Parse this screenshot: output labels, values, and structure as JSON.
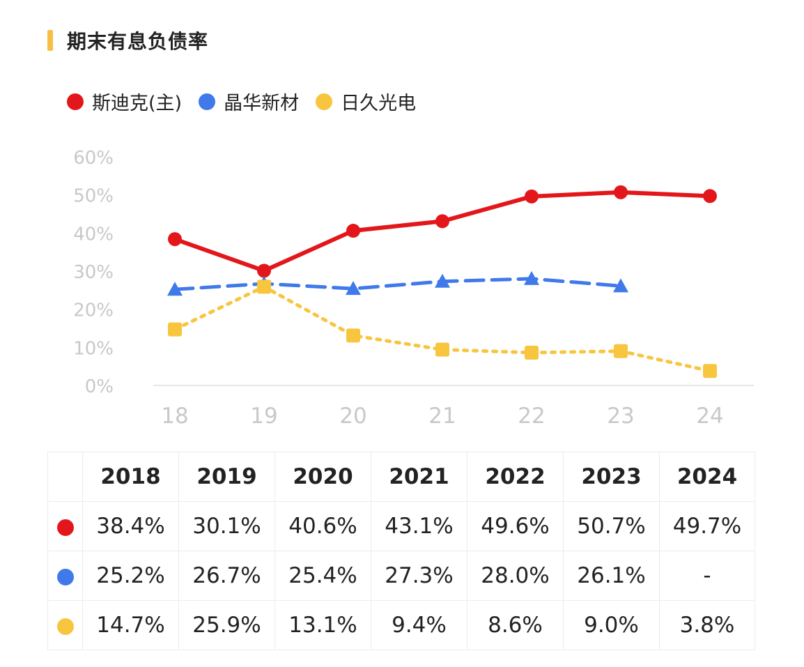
{
  "title": "期末有息负债率",
  "colors": {
    "accent": "#f7c043",
    "grid": "#e6e6e6",
    "axis_text": "#c8c8c8"
  },
  "chart_data": {
    "type": "line",
    "title": "期末有息负债率",
    "x": [
      "18",
      "19",
      "20",
      "21",
      "22",
      "23",
      "24"
    ],
    "ylim": [
      0,
      60
    ],
    "yticks": [
      "60%",
      "50%",
      "40%",
      "30%",
      "20%",
      "10%",
      "0%"
    ],
    "ytick_values": [
      60,
      50,
      40,
      30,
      20,
      10,
      0
    ],
    "legend_position": "top-left",
    "grid": false,
    "series": [
      {
        "name": "斯迪克(主)",
        "color": "#e3171b",
        "style": "solid",
        "marker": "circle",
        "values": [
          38.4,
          30.1,
          40.6,
          43.1,
          49.6,
          50.7,
          49.7
        ]
      },
      {
        "name": "晶华新材",
        "color": "#3f79ea",
        "style": "dashed",
        "marker": "triangle",
        "values": [
          25.2,
          26.7,
          25.4,
          27.3,
          28.0,
          26.1,
          null
        ]
      },
      {
        "name": "日久光电",
        "color": "#f8c53f",
        "style": "dotted",
        "marker": "square",
        "values": [
          14.7,
          25.9,
          13.1,
          9.4,
          8.6,
          9.0,
          3.8
        ]
      }
    ]
  },
  "table": {
    "headers": [
      "2018",
      "2019",
      "2020",
      "2021",
      "2022",
      "2023",
      "2024"
    ],
    "rows": [
      {
        "color": "#e3171b",
        "cells": [
          "38.4%",
          "30.1%",
          "40.6%",
          "43.1%",
          "49.6%",
          "50.7%",
          "49.7%"
        ]
      },
      {
        "color": "#3f79ea",
        "cells": [
          "25.2%",
          "26.7%",
          "25.4%",
          "27.3%",
          "28.0%",
          "26.1%",
          "-"
        ]
      },
      {
        "color": "#f8c53f",
        "cells": [
          "14.7%",
          "25.9%",
          "13.1%",
          "9.4%",
          "8.6%",
          "9.0%",
          "3.8%"
        ]
      }
    ]
  }
}
